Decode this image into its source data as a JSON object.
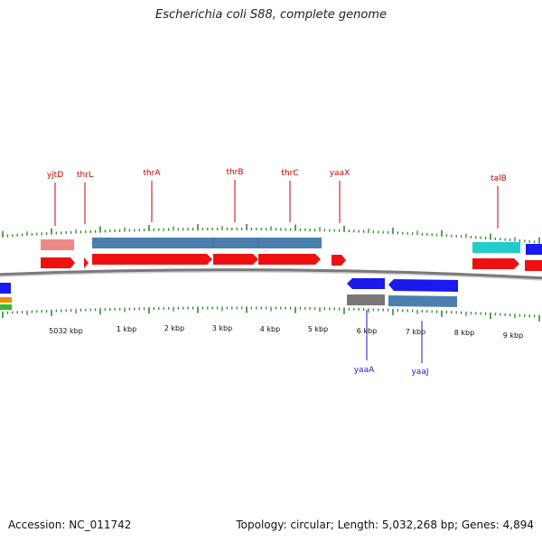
{
  "title": "Escherichia coli S88, complete genome",
  "footer": {
    "accession": "Accession: NC_011742",
    "topology": "Topology: circular; Length: 5,032,268 bp; Genes: 4,894"
  },
  "colors": {
    "forward_label": "#cc0000",
    "reverse_label": "#1a1acc",
    "tick": "#2e8b2e",
    "backbone": "#7a7a7a",
    "gene_red": "#ee1111",
    "gene_blue": "#1a1aee",
    "steel": "#4a7fb0",
    "pink": "#ee8888",
    "cyan": "#22cccc",
    "grey": "#777777"
  },
  "kbp_labels": [
    "5032 kbp",
    "1 kbp",
    "2 kbp",
    "3 kbp",
    "4 kbp",
    "5 kbp",
    "6 kbp",
    "7 kbp",
    "8 kbp",
    "9 kbp"
  ],
  "forward_gene_labels": [
    "yjtD",
    "thrL",
    "thrA",
    "thrB",
    "thrC",
    "yaaX",
    "talB"
  ],
  "reverse_gene_labels": [
    "yaaA",
    "yaaJ"
  ]
}
